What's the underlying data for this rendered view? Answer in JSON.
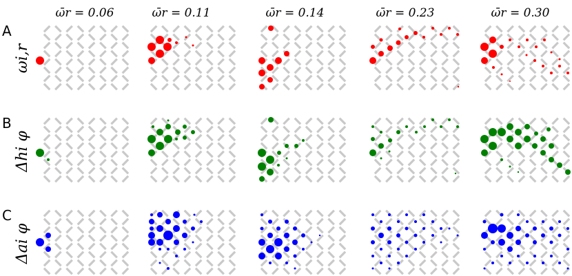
{
  "columns": [
    {
      "title": "ω̄r = 0.06"
    },
    {
      "title": "ω̄r = 0.11"
    },
    {
      "title": "ω̄r = 0.14"
    },
    {
      "title": "ω̄r = 0.23"
    },
    {
      "title": "ω̄r = 0.30"
    }
  ],
  "rows": [
    {
      "letter": "A",
      "symbol": "ωi,r",
      "color": "#ff0000"
    },
    {
      "letter": "B",
      "symbol": "Δhi φ",
      "color": "#008000"
    },
    {
      "letter": "C",
      "symbol": "Δai φ",
      "color": "#0000ff"
    }
  ],
  "lattice": {
    "bar_color": "#c9c9c9"
  }
}
